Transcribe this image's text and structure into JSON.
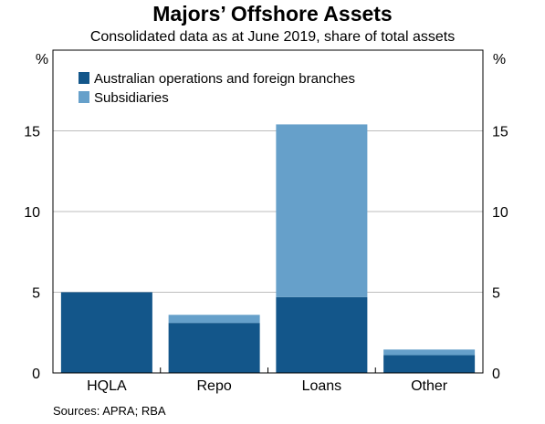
{
  "title": "Majors’ Offshore Assets",
  "subtitle": "Consolidated data as at June 2019, share of total assets",
  "source": "Sources:   APRA; RBA",
  "colors": {
    "australian": "#13568a",
    "subsidiaries": "#66a0ca",
    "grid": "#bdbdbd",
    "axis": "#000000"
  },
  "chart_data": {
    "type": "bar",
    "stacked": true,
    "categories": [
      "HQLA",
      "Repo",
      "Loans",
      "Other"
    ],
    "series": [
      {
        "name": "Australian operations and foreign branches",
        "values": [
          5.0,
          3.1,
          4.7,
          1.1
        ]
      },
      {
        "name": "Subsidiaries",
        "values": [
          0.0,
          0.5,
          10.7,
          0.35
        ]
      }
    ],
    "ylabel_left": "%",
    "ylabel_right": "%",
    "ylim": [
      0,
      20
    ],
    "yticks": [
      0,
      5,
      10,
      15
    ],
    "grid": true,
    "legend_position": "top-left"
  }
}
